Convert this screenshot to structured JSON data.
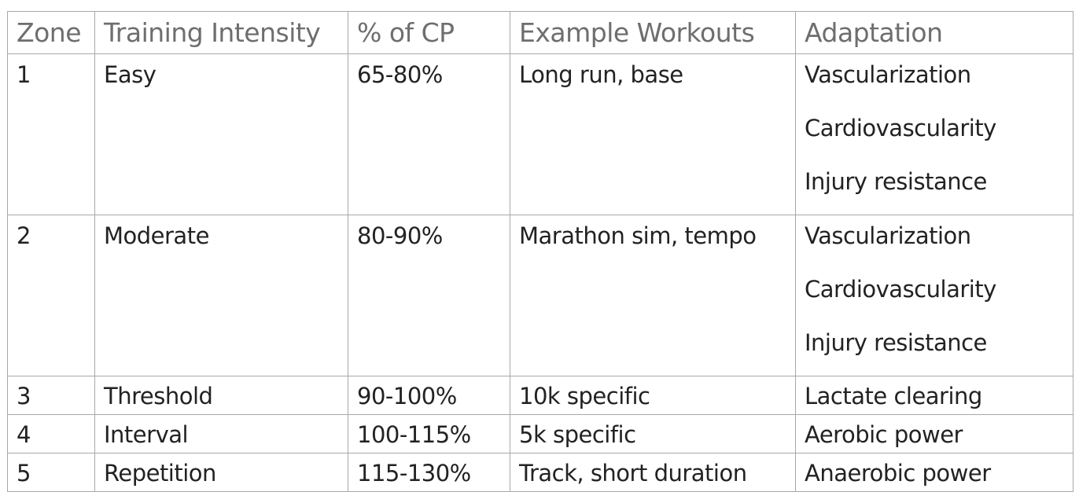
{
  "table": {
    "headers": [
      "Zone",
      "Training Intensity",
      "% of CP",
      "Example Workouts",
      "Adaptation"
    ],
    "rows": [
      {
        "zone": "1",
        "intensity": "Easy",
        "cp": "65-80%",
        "workouts": "Long run, base",
        "adaptation": [
          "Vascularization",
          "Cardiovascularity",
          "Injury resistance"
        ]
      },
      {
        "zone": "2",
        "intensity": "Moderate",
        "cp": "80-90%",
        "workouts": "Marathon sim, tempo",
        "adaptation": [
          "Vascularization",
          "Cardiovascularity",
          "Injury resistance"
        ]
      },
      {
        "zone": "3",
        "intensity": "Threshold",
        "cp": "90-100%",
        "workouts": "10k specific",
        "adaptation": [
          "Lactate clearing"
        ]
      },
      {
        "zone": "4",
        "intensity": "Interval",
        "cp": "100-115%",
        "workouts": "5k specific",
        "adaptation": [
          "Aerobic power"
        ]
      },
      {
        "zone": "5",
        "intensity": "Repetition",
        "cp": "115-130%",
        "workouts": "Track, short duration",
        "adaptation": [
          "Anaerobic power"
        ]
      }
    ]
  }
}
